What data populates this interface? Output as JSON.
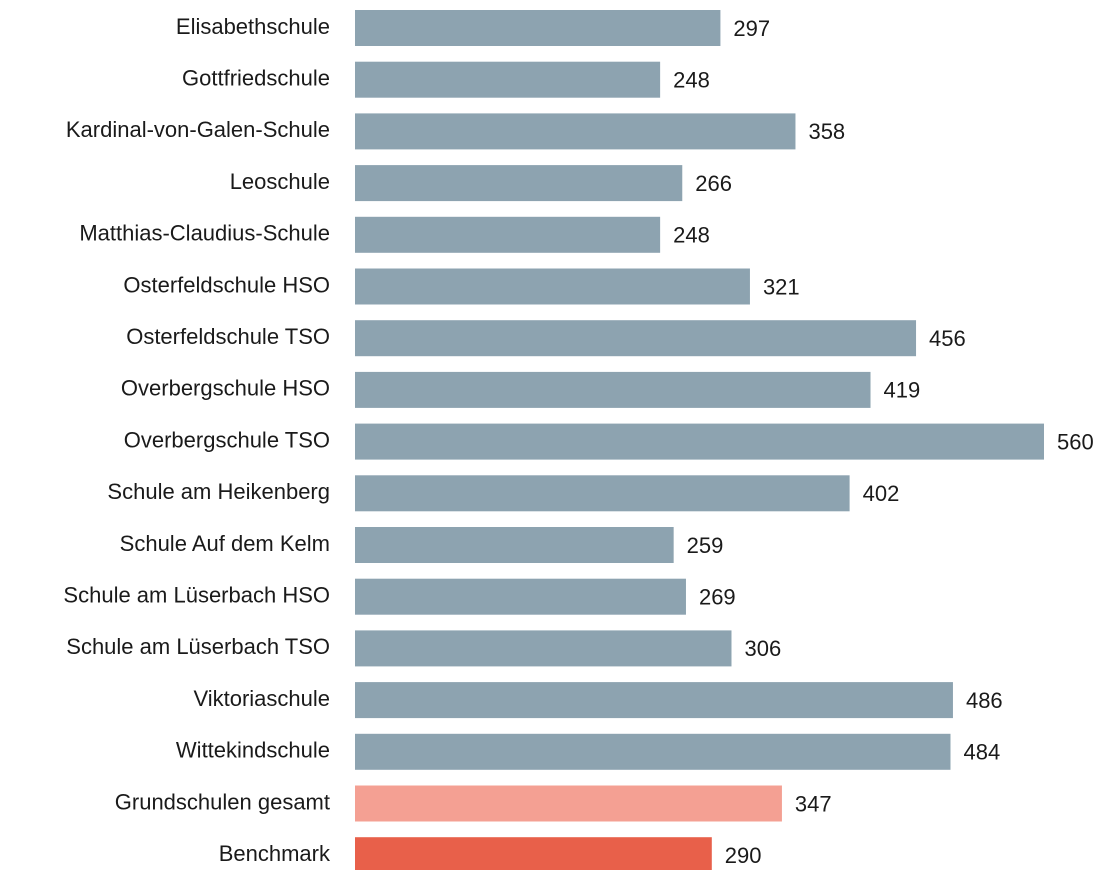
{
  "chart_data": {
    "type": "bar",
    "orientation": "horizontal",
    "categories": [
      "Elisabethschule",
      "Gottfriedschule",
      "Kardinal-von-Galen-Schule",
      "Leoschule",
      "Matthias-Claudius-Schule",
      "Osterfeldschule HSO",
      "Osterfeldschule TSO",
      "Overbergschule HSO",
      "Overbergschule TSO",
      "Schule am Heikenberg",
      "Schule Auf dem Kelm",
      "Schule am Lüserbach HSO",
      "Schule am Lüserbach TSO",
      "Viktoriaschule",
      "Wittekindschule",
      "Grundschulen gesamt",
      "Benchmark"
    ],
    "values": [
      297,
      248,
      358,
      266,
      248,
      321,
      456,
      419,
      560,
      402,
      259,
      269,
      306,
      486,
      484,
      347,
      290
    ],
    "colors": [
      "#8da3b0",
      "#8da3b0",
      "#8da3b0",
      "#8da3b0",
      "#8da3b0",
      "#8da3b0",
      "#8da3b0",
      "#8da3b0",
      "#8da3b0",
      "#8da3b0",
      "#8da3b0",
      "#8da3b0",
      "#8da3b0",
      "#8da3b0",
      "#8da3b0",
      "#f4a093",
      "#e8604a"
    ]
  }
}
